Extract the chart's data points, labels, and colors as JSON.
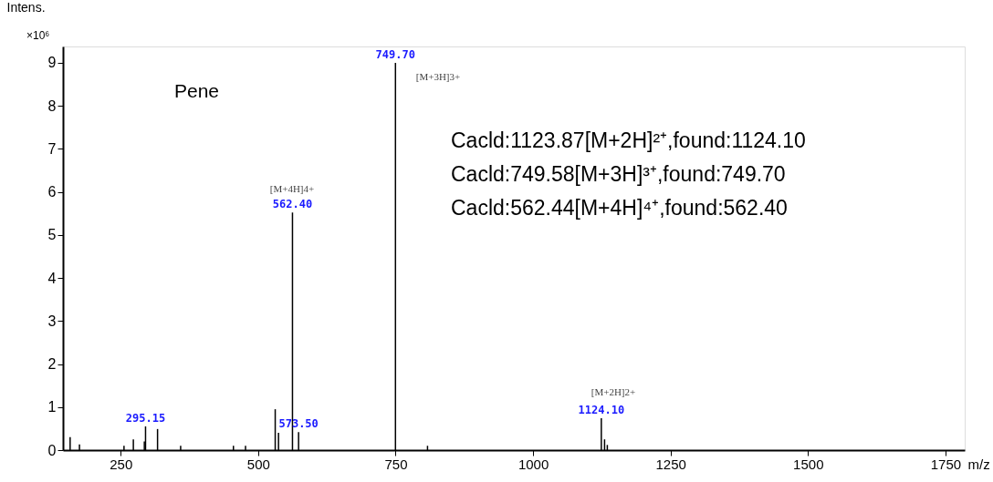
{
  "chart_data": {
    "type": "bar",
    "ylabel": "Intens.",
    "xlabel": "m/z",
    "x": [
      158,
      175,
      256,
      273,
      293,
      295.15,
      317,
      359,
      455,
      477,
      531,
      537,
      562.4,
      573.5,
      749.7,
      808,
      1124.1,
      1130,
      1135
    ],
    "series": [
      {
        "color": "#000000",
        "values": [
          0.3,
          0.13,
          0.1,
          0.25,
          0.2,
          0.55,
          0.49,
          0.1,
          0.1,
          0.1,
          0.95,
          0.4,
          5.52,
          0.42,
          9.0,
          0.1,
          0.74,
          0.25,
          0.12
        ]
      }
    ],
    "xlim": [
      145,
      1785
    ],
    "xticks": [
      250,
      500,
      750,
      {
        "value": 1000,
        "label": "1000"
      },
      {
        "value": 1250,
        "label": "1250"
      },
      {
        "value": 1500,
        "label": "1500"
      },
      {
        "value": 1750,
        "label": "1750"
      }
    ],
    "ylim": [
      0,
      9.38
    ],
    "yticks": [
      0,
      1,
      2,
      3,
      4,
      5,
      6,
      7,
      8,
      9
    ],
    "grid": false,
    "annotations": [
      "×10⁶",
      "Pene",
      "Cacld:1123.87[M+2H]²⁺,found:1124.10",
      "Cacld:749.58[M+3H]³⁺,found:749.70",
      "Cacld:562.44[M+4H]⁴⁺,found:562.40",
      {
        "text": "749.70",
        "x": 749.7,
        "y": 9.0
      },
      "[M+3H]3+",
      {
        "text": "562.40",
        "x": 562.4,
        "y": 5.52
      },
      "[M+4H]4+",
      {
        "text": "1124.10",
        "x": 1124.1,
        "y": 0.74
      },
      "[M+2H]2+",
      {
        "text": "573.50",
        "x": 573.5,
        "y": 0.42
      },
      {
        "text": "295.15",
        "x": 295.15,
        "y": 0.55
      }
    ]
  }
}
